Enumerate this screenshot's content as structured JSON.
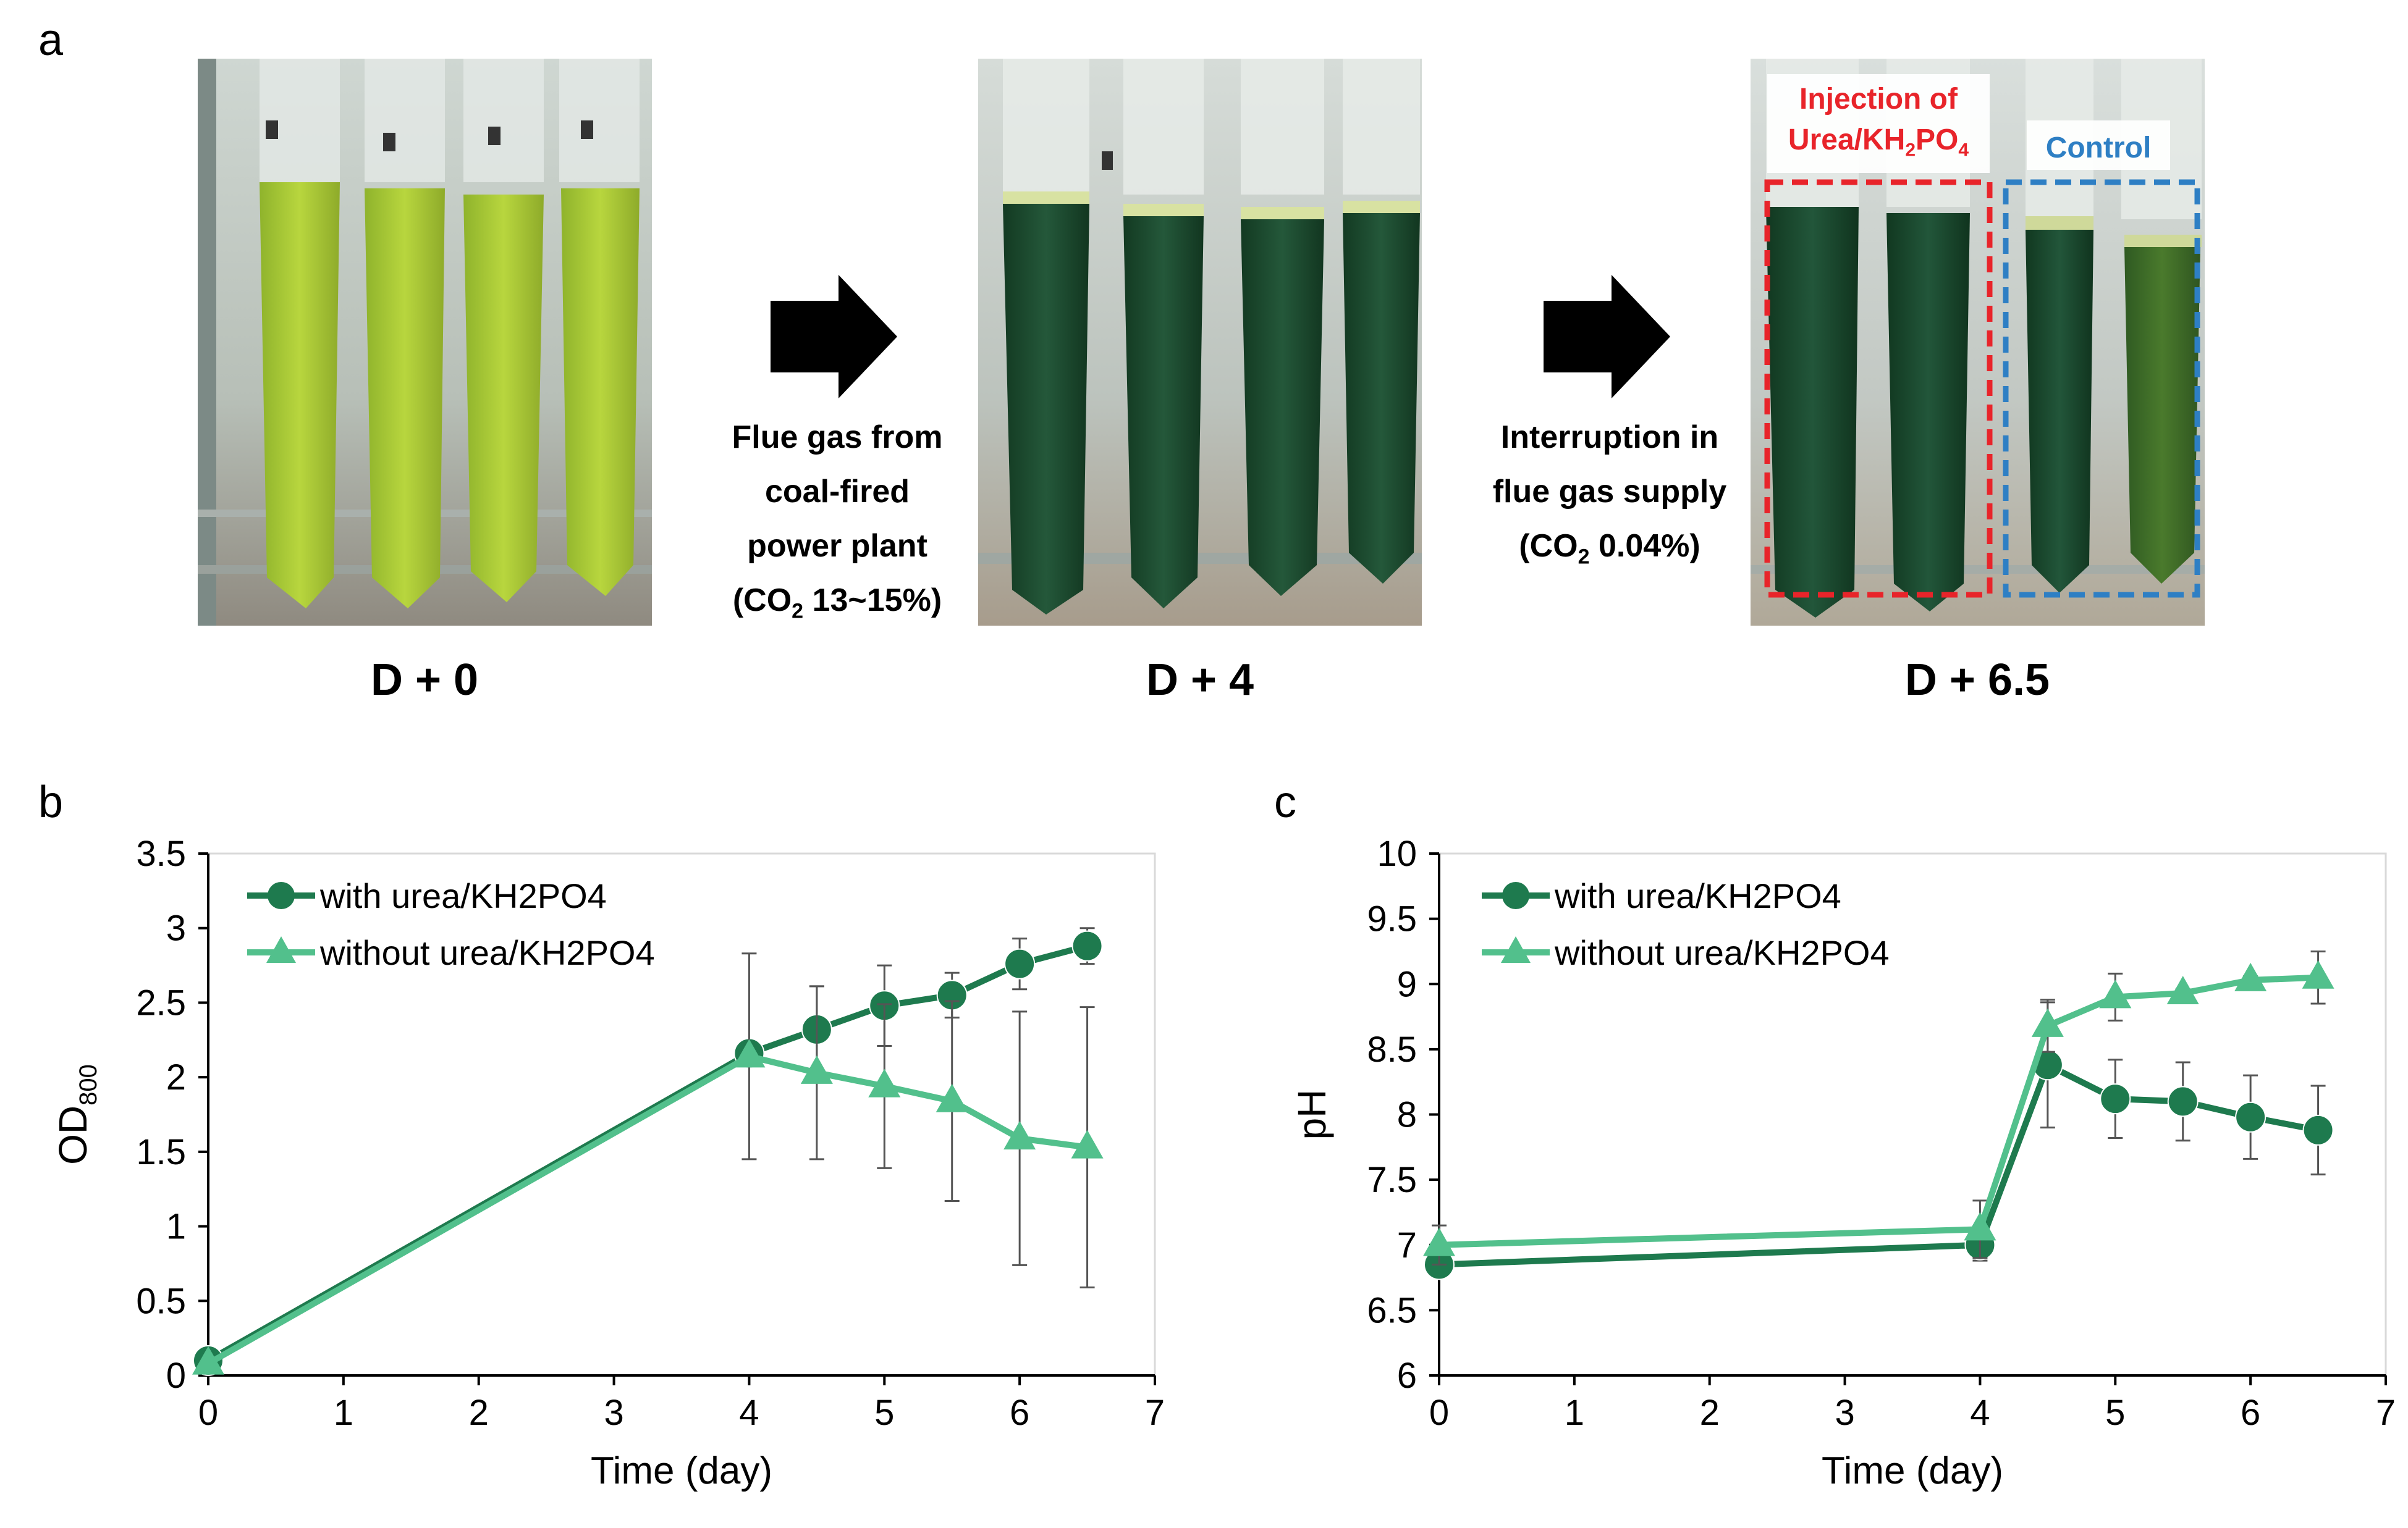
{
  "panels": {
    "a": "a",
    "b": "b",
    "c": "c"
  },
  "panel_a": {
    "days": [
      "D + 0",
      "D + 4",
      "D + 6.5"
    ],
    "step1": {
      "line1": "Flue gas from",
      "line2": "coal-fired",
      "line3": "power plant",
      "line4_pre": "(CO",
      "line4_sub": "2",
      "line4_post": " 13~15%)"
    },
    "step2": {
      "line1": "Interruption in",
      "line2": "flue gas supply",
      "line3_pre": "(CO",
      "line3_sub": "2",
      "line3_post": " 0.04%)"
    },
    "label_injection": {
      "line1": "Injection of",
      "line2_pre": "Urea/KH",
      "line2_sub1": "2",
      "line2_mid": "PO",
      "line2_sub2": "4"
    },
    "label_control": "Control",
    "colors": {
      "injection": "#e8242a",
      "control": "#2e7fc4",
      "culture_light": "#a4c836",
      "culture_dark": "#1c4a2a"
    }
  },
  "chart_data": [
    {
      "type": "line",
      "panel": "b",
      "ylabel_main": "OD",
      "ylabel_sub": "800",
      "xlabel": "Time (day)",
      "xlim": [
        0,
        7
      ],
      "ylim": [
        0,
        3.5
      ],
      "xticks": [
        0,
        1,
        2,
        3,
        4,
        5,
        6,
        7
      ],
      "yticks": [
        0,
        0.5,
        1,
        1.5,
        2,
        2.5,
        3,
        3.5
      ],
      "ytick_labels": [
        "0",
        "0.5",
        "1",
        "1.5",
        "2",
        "2.5",
        "3",
        "3.5"
      ],
      "legend_position": "top-left",
      "series": [
        {
          "name": "with urea/KH2PO4",
          "marker": "circle",
          "color": "#1e7a4e",
          "x": [
            0,
            4,
            4.5,
            5,
            5.5,
            6,
            6.5
          ],
          "y": [
            0.1,
            2.16,
            2.32,
            2.48,
            2.55,
            2.76,
            2.88
          ],
          "err": [
            0.03,
            0.02,
            0.29,
            0.27,
            0.15,
            0.17,
            0.12
          ]
        },
        {
          "name": "without urea/KH2PO4",
          "marker": "triangle",
          "color": "#52c08c",
          "x": [
            0,
            4,
            4.5,
            5,
            5.5,
            6,
            6.5
          ],
          "y": [
            0.08,
            2.14,
            2.03,
            1.94,
            1.84,
            1.59,
            1.53
          ],
          "err": [
            0.02,
            0.69,
            0.58,
            0.55,
            0.67,
            0.85,
            0.94
          ]
        }
      ]
    },
    {
      "type": "line",
      "panel": "c",
      "ylabel": "pH",
      "xlabel": "Time (day)",
      "xlim": [
        0,
        7
      ],
      "ylim": [
        6,
        10
      ],
      "xticks": [
        0,
        1,
        2,
        3,
        4,
        5,
        6,
        7
      ],
      "yticks": [
        6,
        6.5,
        7,
        7.5,
        8,
        8.5,
        9,
        9.5,
        10
      ],
      "ytick_labels": [
        "6",
        "6.5",
        "7",
        "7.5",
        "8",
        "8.5",
        "9",
        "9.5",
        "10"
      ],
      "legend_position": "top-left",
      "series": [
        {
          "name": "with urea/KH2PO4",
          "marker": "circle",
          "color": "#1e7a4e",
          "x": [
            0,
            4,
            4.5,
            5,
            5.5,
            6,
            6.5
          ],
          "y": [
            6.85,
            7.0,
            8.38,
            8.12,
            8.1,
            7.98,
            7.88
          ],
          "err": [
            0.05,
            0.12,
            0.48,
            0.3,
            0.3,
            0.32,
            0.34
          ]
        },
        {
          "name": "without urea/KH2PO4",
          "marker": "triangle",
          "color": "#52c08c",
          "x": [
            0,
            4,
            4.5,
            5,
            5.5,
            6,
            6.5
          ],
          "y": [
            7.0,
            7.12,
            8.68,
            8.9,
            8.93,
            9.03,
            9.05
          ],
          "err": [
            0.15,
            0.22,
            0.2,
            0.18,
            0.03,
            0.03,
            0.2
          ]
        }
      ]
    }
  ]
}
